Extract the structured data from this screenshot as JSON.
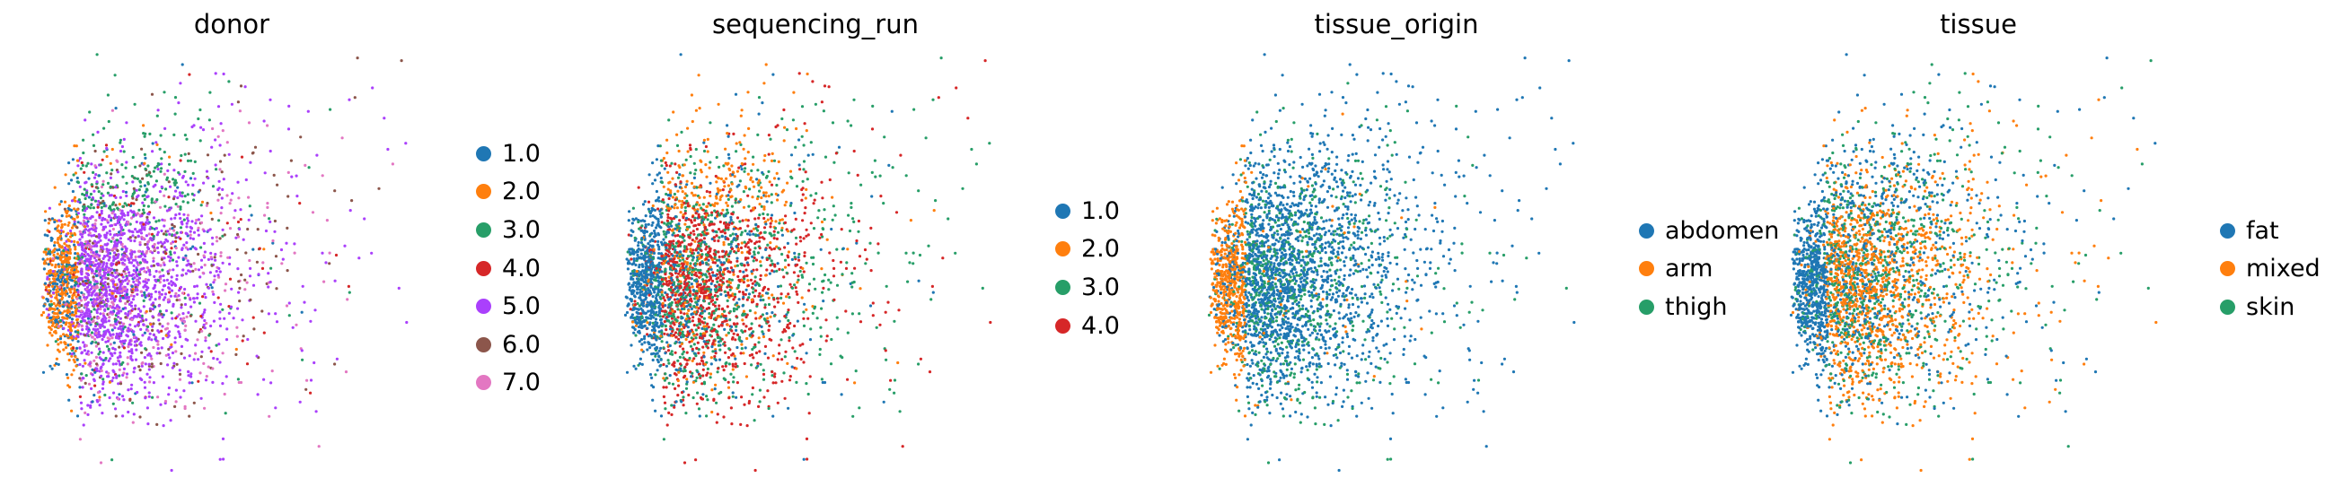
{
  "chart_data": [
    {
      "type": "scatter",
      "title": "donor",
      "xlim": [
        -3,
        9
      ],
      "ylim": [
        -6,
        6
      ],
      "legend_position": "right",
      "categories": [
        "1.0",
        "2.0",
        "3.0",
        "4.0",
        "5.0",
        "6.0",
        "7.0"
      ],
      "colors": [
        "#1f77b4",
        "#ff7f0e",
        "#279e68",
        "#d62728",
        "#aa40fc",
        "#8c564b",
        "#e377c2"
      ],
      "composition": {
        "left": [
          0.25,
          0.6,
          0.05,
          0.01,
          0.05,
          0.02,
          0.02
        ],
        "top": [
          0.08,
          0.03,
          0.45,
          0.04,
          0.25,
          0.1,
          0.05
        ],
        "center": [
          0.04,
          0.01,
          0.05,
          0.02,
          0.65,
          0.08,
          0.15
        ],
        "right": [
          0.02,
          0.02,
          0.06,
          0.06,
          0.38,
          0.22,
          0.24
        ]
      }
    },
    {
      "type": "scatter",
      "title": "sequencing_run",
      "xlim": [
        -3,
        9
      ],
      "ylim": [
        -6,
        6
      ],
      "legend_position": "right",
      "categories": [
        "1.0",
        "2.0",
        "3.0",
        "4.0"
      ],
      "colors": [
        "#1f77b4",
        "#ff7f0e",
        "#279e68",
        "#d62728"
      ],
      "composition": {
        "left": [
          0.8,
          0.05,
          0.1,
          0.05
        ],
        "top": [
          0.1,
          0.5,
          0.25,
          0.15
        ],
        "center": [
          0.15,
          0.1,
          0.3,
          0.45
        ],
        "right": [
          0.08,
          0.06,
          0.56,
          0.3
        ]
      }
    },
    {
      "type": "scatter",
      "title": "tissue_origin",
      "xlim": [
        -3,
        9
      ],
      "ylim": [
        -6,
        6
      ],
      "legend_position": "right",
      "categories": [
        "abdomen",
        "arm",
        "thigh"
      ],
      "colors": [
        "#1f77b4",
        "#ff7f0e",
        "#279e68"
      ],
      "composition": {
        "left": [
          0.2,
          0.75,
          0.05
        ],
        "top": [
          0.75,
          0.02,
          0.23
        ],
        "center": [
          0.7,
          0.02,
          0.28
        ],
        "right": [
          0.78,
          0.01,
          0.21
        ]
      }
    },
    {
      "type": "scatter",
      "title": "tissue",
      "xlim": [
        -3,
        9
      ],
      "ylim": [
        -6,
        6
      ],
      "legend_position": "right",
      "categories": [
        "fat",
        "mixed",
        "skin"
      ],
      "colors": [
        "#1f77b4",
        "#ff7f0e",
        "#279e68"
      ],
      "composition": {
        "left": [
          0.85,
          0.05,
          0.1
        ],
        "top": [
          0.45,
          0.25,
          0.3
        ],
        "center": [
          0.2,
          0.55,
          0.25
        ],
        "right": [
          0.35,
          0.3,
          0.35
        ]
      }
    }
  ]
}
